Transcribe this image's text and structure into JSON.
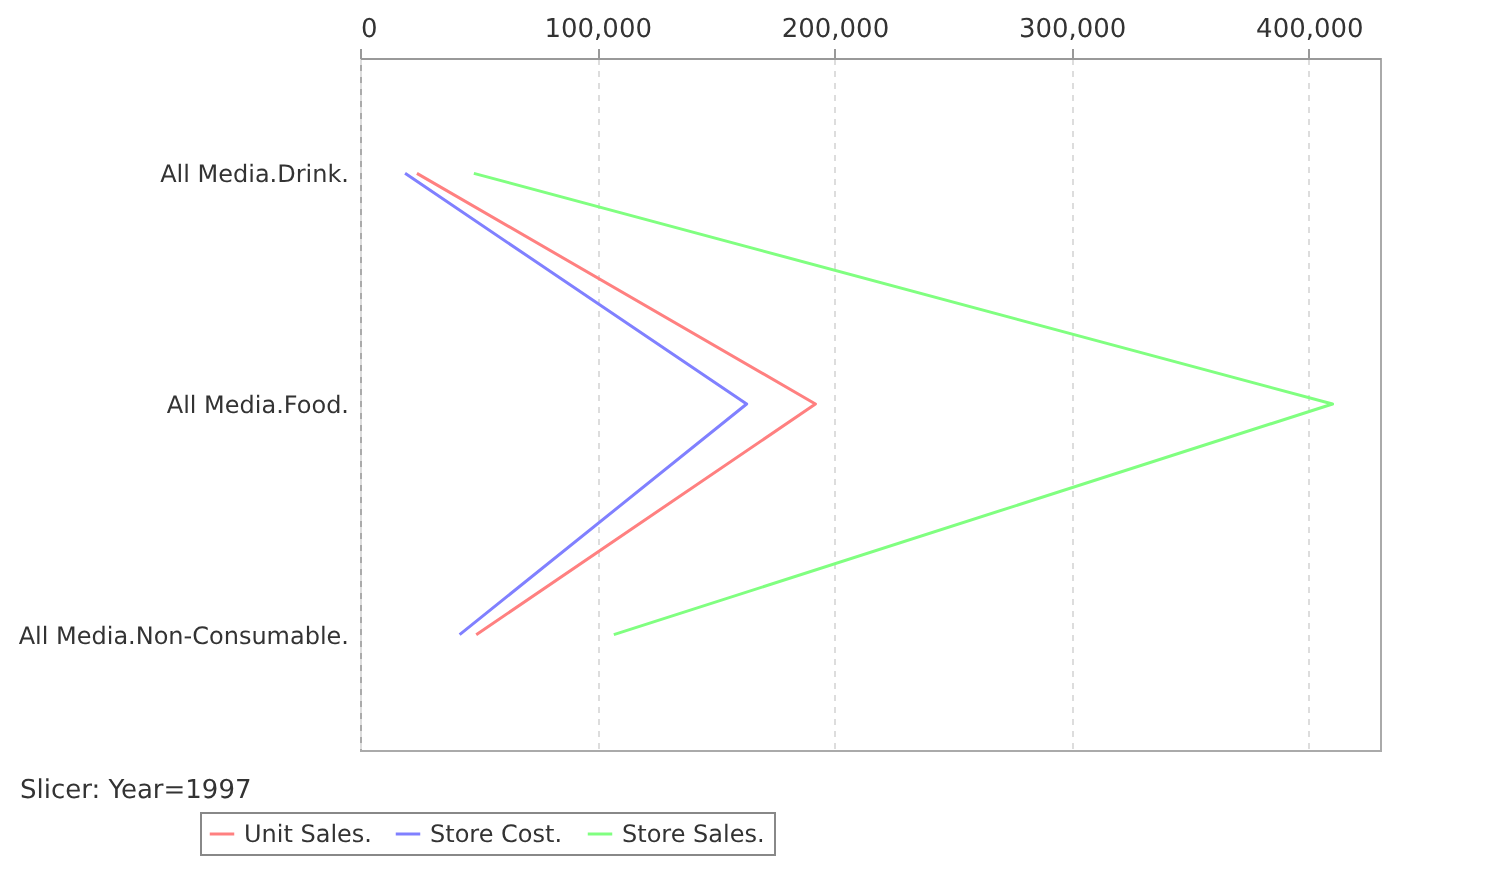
{
  "chart_data": {
    "type": "line",
    "orientation": "horizontal",
    "categories": [
      "All Media.Drink.",
      "All Media.Food.",
      "All Media.Non-Consumable."
    ],
    "series": [
      {
        "name": "Unit Sales.",
        "color": "#ff8080",
        "values": [
          24000,
          192000,
          49000
        ]
      },
      {
        "name": "Store Cost.",
        "color": "#8080ff",
        "values": [
          19000,
          163000,
          42000
        ]
      },
      {
        "name": "Store Sales.",
        "color": "#80ff80",
        "values": [
          48000,
          410000,
          107000
        ]
      }
    ],
    "xlim": [
      0,
      430000
    ],
    "xticks": [
      0,
      {
        "value": 100000,
        "label": "100,000"
      },
      {
        "value": 200000,
        "label": "200,000"
      },
      {
        "value": 300000,
        "label": "300,000"
      },
      {
        "value": 400000,
        "label": "400,000"
      }
    ],
    "grid": "x",
    "legend": "bottom",
    "marker": "none",
    "annotations": [
      "Slicer: Year=1997"
    ]
  }
}
